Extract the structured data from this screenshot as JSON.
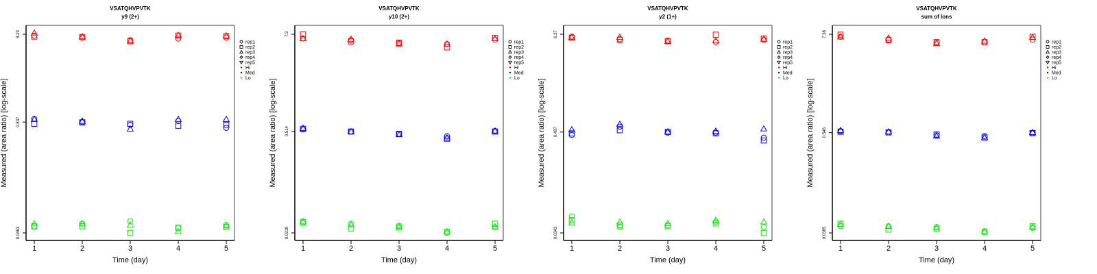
{
  "chart_data": [
    {
      "type": "scatter",
      "title": "VSATQHVPVTK",
      "subtitle": "y9 (2+)",
      "xlabel": "Time (day)",
      "ylabel": "Measured (area ratio) [log-scale]",
      "x_ticks": [
        "1",
        "2",
        "3",
        "4",
        "5"
      ],
      "y_scale": "log",
      "y_ticks": [
        {
          "value": 8.29,
          "label": "8.29"
        },
        {
          "value": 0.837,
          "label": "0.837"
        },
        {
          "value": 0.0463,
          "label": "0.0463"
        }
      ],
      "series": [
        {
          "name": "Hi",
          "color": "#ff0000",
          "points": {
            "rep1": [
              8.0,
              7.6,
              7.1,
              7.4,
              7.6
            ],
            "rep2": [
              7.8,
              7.7,
              6.9,
              8.0,
              7.9
            ],
            "rep3": [
              8.6,
              7.8,
              7.0,
              8.1,
              8.0
            ]
          }
        },
        {
          "name": "Med",
          "color": "#0000ff",
          "points": {
            "rep1": [
              0.91,
              0.84,
              0.78,
              0.86,
              0.72
            ],
            "rep2": [
              0.8,
              0.83,
              0.8,
              0.76,
              0.78
            ],
            "rep3": [
              0.9,
              0.86,
              0.7,
              0.9,
              0.9
            ]
          }
        },
        {
          "name": "Lo",
          "color": "#00ee00",
          "points": {
            "rep1": [
              0.055,
              0.059,
              0.063,
              0.053,
              0.057
            ],
            "rep2": [
              0.055,
              0.055,
              0.0463,
              0.053,
              0.054
            ],
            "rep3": [
              0.059,
              0.059,
              0.057,
              0.048,
              0.056
            ]
          }
        }
      ]
    },
    {
      "type": "scatter",
      "title": "VSATQHVPVTK",
      "subtitle": "y10 (2+)",
      "xlabel": "Time (day)",
      "ylabel": "Measured (area ratio) [log-scale]",
      "x_ticks": [
        "1",
        "2",
        "3",
        "4",
        "5"
      ],
      "y_scale": "log",
      "y_ticks": [
        {
          "value": 7.3,
          "label": "7.3"
        },
        {
          "value": 0.514,
          "label": "0.514"
        },
        {
          "value": 0.0319,
          "label": "0.0319"
        }
      ],
      "series": [
        {
          "name": "Hi",
          "color": "#ff0000",
          "points": {
            "rep1": [
              6.5,
              6.2,
              5.7,
              5.6,
              6.3
            ],
            "rep2": [
              7.3,
              6.0,
              5.8,
              5.1,
              6.6
            ],
            "rep3": [
              6.5,
              6.4,
              5.6,
              5.6,
              6.5
            ]
          }
        },
        {
          "name": "Med",
          "color": "#0000ff",
          "points": {
            "rep1": [
              0.54,
              0.51,
              0.48,
              0.45,
              0.52
            ],
            "rep2": [
              0.55,
              0.51,
              0.48,
              0.42,
              0.51
            ],
            "rep3": [
              0.56,
              0.51,
              0.47,
              0.43,
              0.52
            ]
          }
        },
        {
          "name": "Lo",
          "color": "#00ee00",
          "points": {
            "rep1": [
              0.042,
              0.041,
              0.039,
              0.032,
              0.037
            ],
            "rep2": [
              0.043,
              0.036,
              0.037,
              0.033,
              0.041
            ],
            "rep3": [
              0.044,
              0.04,
              0.038,
              0.033,
              0.038
            ]
          }
        }
      ]
    },
    {
      "type": "scatter",
      "title": "VSATQHVPVTK",
      "subtitle": "y2 (1+)",
      "xlabel": "Time (day)",
      "ylabel": "Measured (area ratio) [log-scale]",
      "x_ticks": [
        "1",
        "2",
        "3",
        "4",
        "5"
      ],
      "y_scale": "log",
      "y_ticks": [
        {
          "value": 6.37,
          "label": "6.37"
        },
        {
          "value": 0.487,
          "label": "0.487"
        },
        {
          "value": 0.0343,
          "label": "0.0343"
        }
      ],
      "series": [
        {
          "name": "Hi",
          "color": "#ff0000",
          "points": {
            "rep1": [
              6.0,
              5.6,
              5.4,
              5.2,
              5.5
            ],
            "rep2": [
              5.8,
              5.5,
              5.3,
              6.3,
              5.7
            ],
            "rep3": [
              5.9,
              5.9,
              5.3,
              5.4,
              5.6
            ]
          }
        },
        {
          "name": "Med",
          "color": "#0000ff",
          "points": {
            "rep1": [
              0.45,
              0.56,
              0.48,
              0.48,
              0.42
            ],
            "rep2": [
              0.47,
              0.51,
              0.49,
              0.47,
              0.39
            ],
            "rep3": [
              0.52,
              0.6,
              0.49,
              0.5,
              0.53
            ]
          }
        },
        {
          "name": "Lo",
          "color": "#00ee00",
          "points": {
            "rep1": [
              0.053,
              0.04,
              0.042,
              0.046,
              0.04
            ],
            "rep2": [
              0.048,
              0.042,
              0.041,
              0.044,
              0.0343
            ],
            "rep3": [
              0.045,
              0.046,
              0.044,
              0.048,
              0.046
            ]
          }
        }
      ]
    },
    {
      "type": "scatter",
      "title": "VSATQHVPVTK",
      "subtitle": "sum of Ions",
      "xlabel": "Time (day)",
      "ylabel": "Measured (area ratio) [log-scale]",
      "x_ticks": [
        "1",
        "2",
        "3",
        "4",
        "5"
      ],
      "y_scale": "log",
      "y_ticks": [
        {
          "value": 7.38,
          "label": "7.38"
        },
        {
          "value": 0.546,
          "label": "0.546"
        },
        {
          "value": 0.0385,
          "label": "0.0385"
        }
      ],
      "series": [
        {
          "name": "Hi",
          "color": "#ff0000",
          "points": {
            "rep1": [
              6.9,
              6.4,
              5.9,
              6.0,
              6.4
            ],
            "rep2": [
              7.3,
              6.3,
              6.0,
              6.0,
              6.9
            ],
            "rep3": [
              6.9,
              6.7,
              5.8,
              6.2,
              6.8
            ]
          }
        },
        {
          "name": "Med",
          "color": "#0000ff",
          "points": {
            "rep1": [
              0.57,
              0.55,
              0.51,
              0.5,
              0.54
            ],
            "rep2": [
              0.56,
              0.55,
              0.52,
              0.48,
              0.54
            ],
            "rep3": [
              0.58,
              0.56,
              0.5,
              0.48,
              0.55
            ]
          }
        },
        {
          "name": "Lo",
          "color": "#00ee00",
          "points": {
            "rep1": [
              0.046,
              0.046,
              0.045,
              0.039,
              0.044
            ],
            "rep2": [
              0.049,
              0.042,
              0.043,
              0.04,
              0.046
            ],
            "rep3": [
              0.049,
              0.046,
              0.044,
              0.04,
              0.045
            ]
          }
        }
      ]
    }
  ],
  "legend": {
    "placement": "right",
    "entries": [
      {
        "label": "rep1",
        "symbol": "circle"
      },
      {
        "label": "rep2",
        "symbol": "square"
      },
      {
        "label": "rep3",
        "symbol": "triangle-up"
      },
      {
        "label": "rep4",
        "symbol": "diamond"
      },
      {
        "label": "rep5",
        "symbol": "triangle-down"
      },
      {
        "label": "Hi",
        "symbol": "dot",
        "color": "#ff0000"
      },
      {
        "label": "Med",
        "symbol": "dot",
        "color": "#0000ff"
      },
      {
        "label": "Lo",
        "symbol": "dot",
        "color": "#00ee00"
      }
    ]
  }
}
